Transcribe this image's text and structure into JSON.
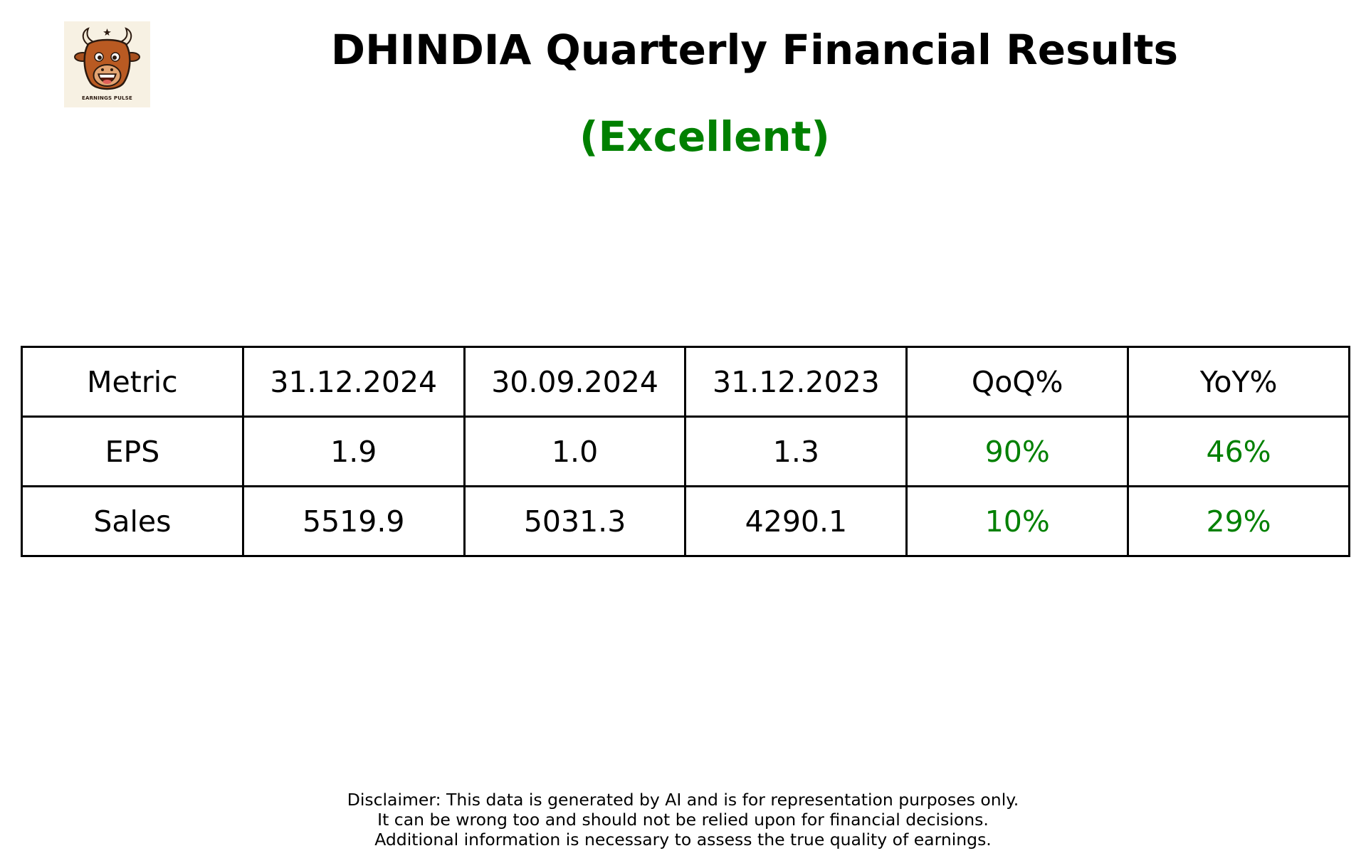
{
  "logo": {
    "text": "EARNINGS PULSE",
    "icon": "bull-mascot-icon",
    "background": "#f7f1e3"
  },
  "header": {
    "title": "DHINDIA Quarterly Financial Results",
    "rating": "(Excellent)",
    "rating_color": "#008000"
  },
  "chart_data": {
    "type": "table",
    "columns": [
      "Metric",
      "31.12.2024",
      "30.09.2024",
      "31.12.2023",
      "QoQ%",
      "YoY%"
    ],
    "rows": [
      {
        "metric": "EPS",
        "current": "1.9",
        "previous_quarter": "1.0",
        "previous_year": "1.3",
        "qoq": "90%",
        "yoy": "46%"
      },
      {
        "metric": "Sales",
        "current": "5519.9",
        "previous_quarter": "5031.3",
        "previous_year": "4290.1",
        "qoq": "10%",
        "yoy": "29%"
      }
    ],
    "change_color": "#008000"
  },
  "disclaimer": {
    "line1": "Disclaimer: This data is generated by AI and is for representation purposes only.",
    "line2": "It can be wrong too and should not be relied upon for financial decisions.",
    "line3": "Additional information is necessary to assess the true quality of earnings."
  }
}
